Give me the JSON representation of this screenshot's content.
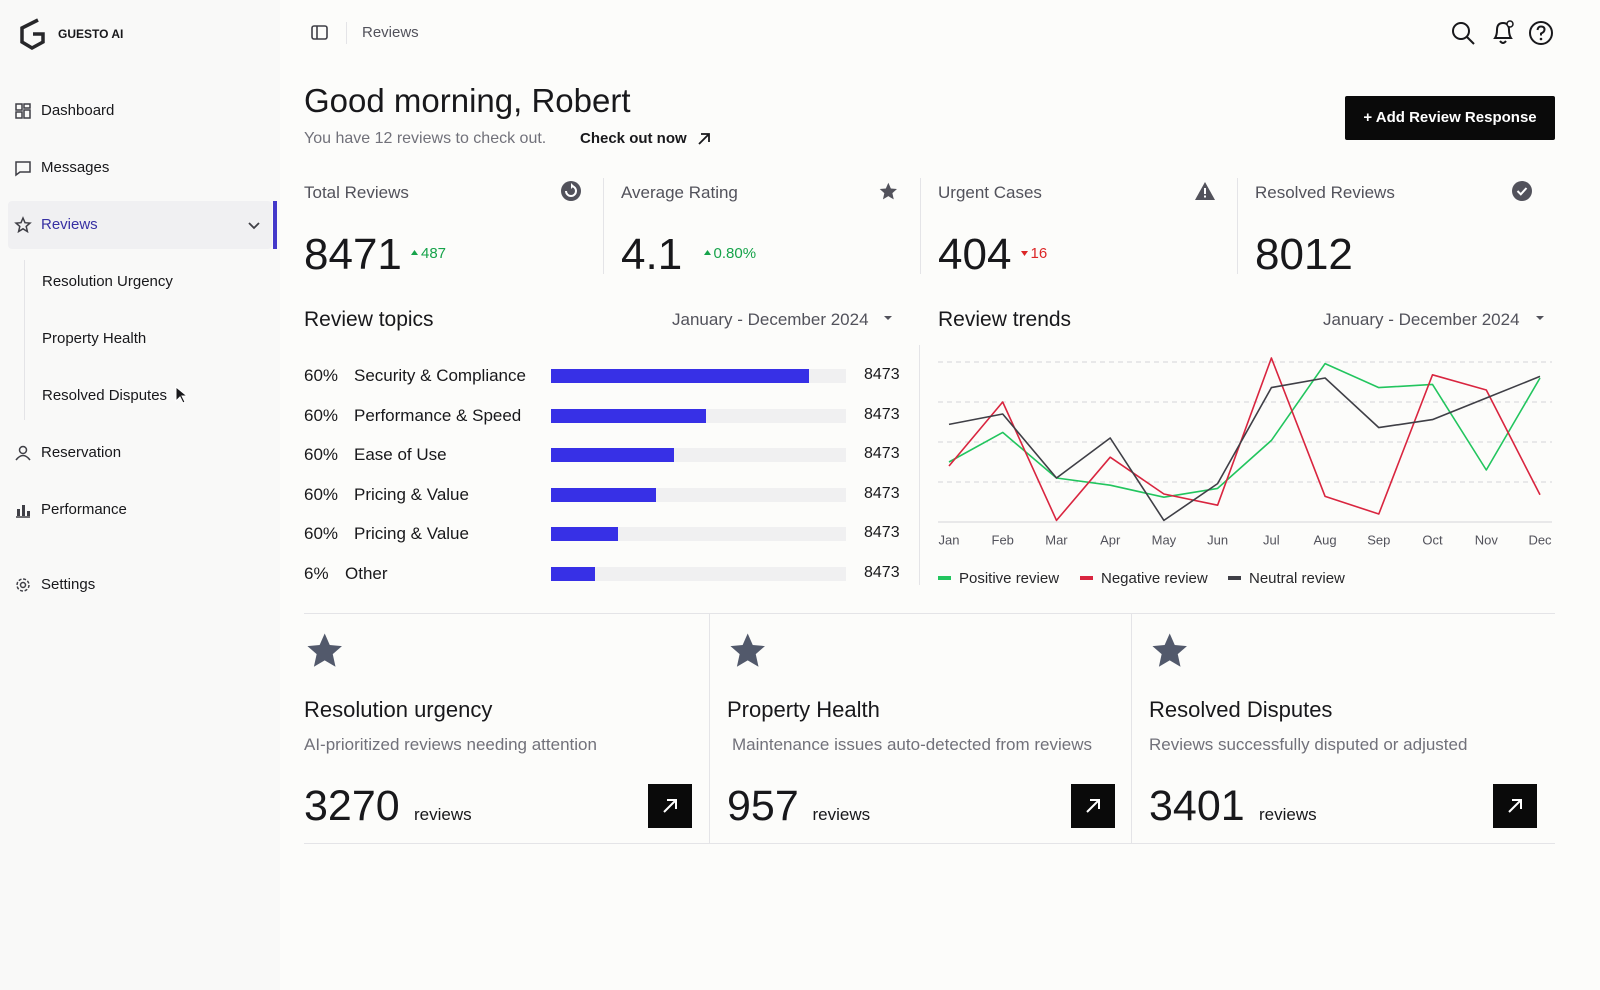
{
  "sidebar": {
    "brand": "GUESTO AI",
    "nav": [
      {
        "label": "Dashboard"
      },
      {
        "label": "Messages"
      },
      {
        "label": "Reviews",
        "children": [
          "Resolution Urgency",
          "Property Health",
          "Resolved Disputes"
        ]
      },
      {
        "label": "Reservation"
      },
      {
        "label": "Performance"
      },
      {
        "label": "Settings"
      }
    ]
  },
  "header": {
    "breadcrumb": "Reviews",
    "greeting": "Good morning, Robert",
    "subtitle": "You have 12 reviews to check out.",
    "link": "Check out now",
    "button": "+ Add Review Response"
  },
  "kpis": [
    {
      "label": "Total Reviews",
      "value": 8471,
      "change": 487
    },
    {
      "label": "Average Rating",
      "value": 4.1,
      "change": "0.80%"
    },
    {
      "label": "Urgent Cases",
      "value": 404,
      "change": 16
    },
    {
      "label": "Resolved Reviews",
      "value": 8012
    }
  ],
  "review_topics": {
    "title": "Review topics",
    "period": "January - December 2024",
    "scale": [
      0,
      100
    ],
    "items": [
      {
        "percent": "60%",
        "name": "Security & Compliance",
        "share": 87.5,
        "count": 8473
      },
      {
        "percent": "60%",
        "name": "Performance & Speed",
        "share": 52.5,
        "count": 8473
      },
      {
        "percent": "60%",
        "name": "Ease of Use",
        "share": 41.7,
        "count": 8473
      },
      {
        "percent": "60%",
        "name": "Pricing & Value",
        "share": 35.6,
        "count": 8473
      },
      {
        "percent": "60%",
        "name": "Pricing & Value",
        "share": 22.7,
        "count": 8473
      },
      {
        "percent": "6%",
        "name": "Other",
        "share": 14.9,
        "count": 8473
      }
    ]
  },
  "chart_data": {
    "type": "line",
    "title": "Review trends",
    "subtitle": "January - December 2024",
    "categories": [
      "Jan",
      "Feb",
      "Mar",
      "Apr",
      "May",
      "Jun",
      "Jul",
      "Aug",
      "Sep",
      "Oct",
      "Nov",
      "Dec"
    ],
    "series": [
      {
        "name": "Positive review",
        "color": "#22c55e",
        "values": [
          37.5,
          56,
          27.5,
          23,
          15.5,
          21,
          51,
          99,
          84,
          86,
          32.5,
          90
        ]
      },
      {
        "name": "Negative review",
        "color": "#d9253f",
        "values": [
          35,
          75,
          1,
          40.5,
          17.5,
          10.5,
          102.5,
          16,
          5,
          92,
          82.5,
          17
        ]
      },
      {
        "name": "Neutral review",
        "color": "#3f3f46",
        "values": [
          61,
          67.5,
          27.5,
          52.5,
          1,
          24,
          84,
          90,
          59,
          64,
          77.5,
          91
        ]
      }
    ],
    "ylim": [
      0,
      105
    ],
    "yticks": [
      0,
      25,
      50,
      75,
      100
    ],
    "grid": true
  },
  "cards": [
    {
      "title": "Resolution urgency",
      "description": "AI-prioritized reviews needing attention",
      "value": 3270,
      "unit": "reviews"
    },
    {
      "title": "Property Health",
      "description": "Maintenance issues auto-detected from reviews",
      "value": 957,
      "unit": "reviews"
    },
    {
      "title": "Resolved Disputes",
      "description": "Reviews successfully disputed or adjusted",
      "value": 3401,
      "unit": "reviews"
    }
  ]
}
